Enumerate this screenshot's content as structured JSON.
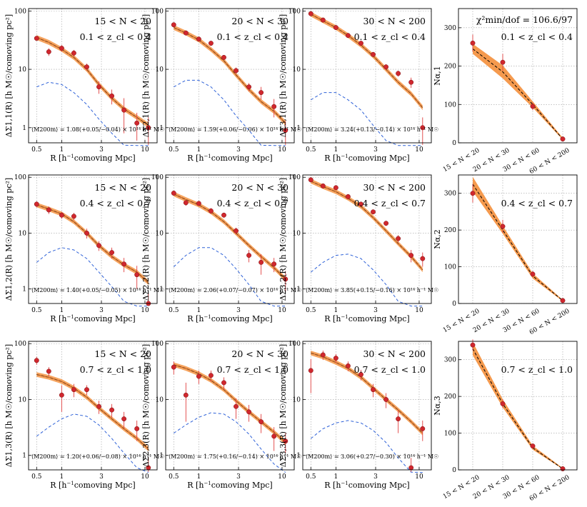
{
  "figure": {
    "xlabel_main": "R [h",
    "xlabel_sup": "−1",
    "xlabel_rest": "comoving Mpc]",
    "nsub_label": "N",
    "nsub_sub": "α"
  },
  "colors": {
    "band": "#f59a4e",
    "model": "#000000",
    "twohalo": "#2f62d8",
    "point": "#d0272e",
    "err": "#e04040"
  },
  "chart_data": {
    "type": "line",
    "xlim": [
      0.4,
      14
    ],
    "ylim": [
      0.55,
      110
    ],
    "xscale": "log",
    "yscale": "log",
    "xticks": [
      {
        "v": 0.5,
        "t": "0.5"
      },
      {
        "v": 1,
        "t": "1"
      },
      {
        "v": 3,
        "t": "3"
      },
      {
        "v": 10,
        "t": "10"
      }
    ],
    "yticks": [
      {
        "v": 1,
        "t": "1"
      },
      {
        "v": 10,
        "t": "10"
      },
      {
        "v": 100,
        "t": "100"
      }
    ],
    "r": [
      0.5,
      0.7,
      1.0,
      1.4,
      2.0,
      2.8,
      4.0,
      5.6,
      8.0,
      11.0
    ],
    "richness_bins": [
      "15 < N < 20",
      "20 < N < 30",
      "30 < N < 200"
    ],
    "redshift_bins": [
      "0.1 < z_cl < 0.4",
      "0.4 < z_cl < 0.7",
      "0.7 < z_cl < 1.0"
    ],
    "panels": [
      {
        "ylabel": "ΔΣ1,1(R) [h M☉/comoving pc²]",
        "richness": "15 < N < 20",
        "redshift": "0.1 < z_cl < 0.4",
        "mass": "⟨M200m⟩ = 1.08(+0.05/−0.04) × 10¹⁴ h⁻¹ M☉",
        "y": [
          34,
          20,
          23,
          19,
          11,
          5.0,
          3.5,
          2.0,
          1.2,
          1.0
        ],
        "err": [
          3,
          3,
          3,
          2.5,
          1.5,
          1.2,
          1.0,
          1.2,
          0.6,
          0.5
        ],
        "model": [
          35,
          29,
          22,
          16,
          10,
          5.5,
          3.2,
          2.1,
          1.5,
          1.1
        ],
        "twohalo": [
          5,
          6,
          5.5,
          4,
          2.5,
          1.4,
          0.8,
          0.5,
          0.35,
          0.25
        ]
      },
      {
        "ylabel": "ΔΣ2,1(R) [h M☉/comoving pc²]",
        "richness": "20 < N < 30",
        "redshift": "0.1 < z_cl < 0.4",
        "mass": "⟨M200m⟩ = 1.59(+0.06/−0.06) × 10¹⁴ h⁻¹ M☉",
        "y": [
          58,
          42,
          33,
          28,
          16,
          9.5,
          5,
          4,
          2.3,
          0.9
        ],
        "err": [
          4,
          3,
          3,
          2.5,
          1.5,
          1.2,
          0.8,
          1.0,
          0.8,
          0.4
        ],
        "model": [
          52,
          42,
          32,
          22,
          14,
          8,
          4.5,
          2.8,
          1.9,
          1.2
        ],
        "twohalo": [
          5,
          6.5,
          6.5,
          5,
          3,
          1.6,
          0.9,
          0.5,
          0.3,
          0.2
        ]
      },
      {
        "ylabel": "ΔΣ3,1(R) [h M☉/comoving pc²]",
        "richness": "30 < N < 200",
        "redshift": "0.1 < z_cl < 0.4",
        "mass": "⟨M200m⟩ = 3.24(+0.13/−0.14) × 10¹⁴ h⁻¹ M☉",
        "y": [
          90,
          70,
          52,
          38,
          28,
          18,
          11,
          8.5,
          6,
          1.0
        ],
        "err": [
          5,
          4,
          3,
          2.5,
          2,
          1.5,
          1.2,
          1.0,
          1.2,
          0.5
        ],
        "model": [
          88,
          68,
          52,
          38,
          26,
          17,
          10,
          6,
          3.8,
          2.2
        ],
        "twohalo": [
          3,
          4,
          4,
          3,
          2,
          1.1,
          0.6,
          0.35,
          0.2,
          0.12
        ]
      },
      {
        "ylabel": "ΔΣ1,2(R) [h M☉/comoving pc²]",
        "richness": "15 < N < 20",
        "redshift": "0.4 < z_cl < 0.7",
        "mass": "⟨M200m⟩ = 1.40(+0.05/−0.05) × 10¹⁴ h⁻¹ M☉",
        "y": [
          33,
          26,
          21,
          20,
          10,
          6,
          4.5,
          2.8,
          1.8,
          0.55
        ],
        "err": [
          4,
          4,
          3,
          3,
          2,
          1.2,
          1.0,
          0.8,
          0.8,
          0.3
        ],
        "model": [
          32,
          27,
          22,
          16,
          10,
          6,
          3.8,
          2.7,
          2,
          1.3
        ],
        "twohalo": [
          3,
          4.5,
          5.5,
          5,
          3.5,
          2,
          1.1,
          0.6,
          0.35,
          0.2
        ]
      },
      {
        "ylabel": "ΔΣ2,2(R) [h M☉/comoving pc²]",
        "richness": "20 < N < 30",
        "redshift": "0.4 < z_cl < 0.7",
        "mass": "⟨M200m⟩ = 2.06(+0.07/−0.07) × 10¹⁴ h⁻¹ M☉",
        "y": [
          52,
          35,
          34,
          25,
          21,
          11,
          4,
          3,
          2.8,
          1.5
        ],
        "err": [
          5,
          4,
          3,
          3,
          2,
          1.5,
          1.0,
          1.2,
          0.8,
          0.6
        ],
        "model": [
          50,
          40,
          32,
          24,
          16,
          10,
          6,
          3.8,
          2.4,
          1.5
        ],
        "twohalo": [
          2.5,
          4,
          5.5,
          5.5,
          4,
          2.3,
          1.2,
          0.6,
          0.35,
          0.2
        ]
      },
      {
        "ylabel": "ΔΣ3,2(R) [h M☉/comoving pc²]",
        "richness": "30 < N < 200",
        "redshift": "0.4 < z_cl < 0.7",
        "mass": "⟨M200m⟩ = 3.85(+0.15/−0.16) × 10¹⁴ h⁻¹ M☉",
        "y": [
          90,
          70,
          65,
          45,
          33,
          24,
          15,
          8,
          4,
          3.5
        ],
        "err": [
          6,
          5,
          5,
          4,
          3,
          2,
          1.5,
          1.2,
          1.0,
          1.0
        ],
        "model": [
          85,
          68,
          55,
          42,
          30,
          19,
          11,
          6.5,
          3.8,
          2.2
        ],
        "twohalo": [
          2,
          3,
          4,
          4.2,
          3.5,
          2.2,
          1.2,
          0.6,
          0.35,
          0.2
        ]
      },
      {
        "ylabel": "ΔΣ1,3(R) [h M☉/comoving pc²]",
        "richness": "15 < N < 20",
        "redshift": "0.7 < z_cl < 1.0",
        "mass": "⟨M200m⟩ = 1.20(+0.06/−0.08) × 10¹⁴ h⁻¹ M☉",
        "y": [
          50,
          32,
          12,
          15,
          15,
          7.5,
          6.5,
          4.5,
          3,
          0.6
        ],
        "err": [
          8,
          6,
          6,
          4,
          3,
          2,
          1.8,
          1.5,
          1.2,
          0.3
        ],
        "model": [
          28,
          25,
          21,
          16,
          11,
          7,
          4.5,
          3,
          2,
          1.3
        ],
        "twohalo": [
          2.2,
          3.2,
          4.5,
          5.5,
          5,
          3.5,
          2,
          1.1,
          0.6,
          0.35
        ]
      },
      {
        "ylabel": "ΔΣ2,3(R) [h M☉/comoving pc²]",
        "richness": "20 < N < 30",
        "redshift": "0.7 < z_cl < 1.0",
        "mass": "⟨M200m⟩ = 1.75(+0.16/−0.14) × 10¹⁴ h⁻¹ M☉",
        "y": [
          38,
          12,
          26,
          27,
          20,
          7.5,
          6,
          4,
          2.2,
          1.8
        ],
        "err": [
          10,
          8,
          7,
          6,
          5,
          3,
          2,
          1.5,
          1.0,
          0.7
        ],
        "model": [
          42,
          36,
          29,
          22,
          15,
          9.5,
          6,
          4,
          2.6,
          1.7
        ],
        "twohalo": [
          2.5,
          3.5,
          4.8,
          5.8,
          5.5,
          4,
          2.4,
          1.3,
          0.7,
          0.4
        ]
      },
      {
        "ylabel": "ΔΣ3,3(R) [h M☉/comoving pc²]",
        "richness": "30 < N < 200",
        "redshift": "0.7 < z_cl < 1.0",
        "mass": "⟨M200m⟩ = 3.06(+0.27/−0.30) × 10¹⁴ h⁻¹ M☉",
        "y": [
          33,
          63,
          55,
          40,
          28,
          15,
          10,
          4.5,
          0.6,
          3
        ],
        "err": [
          20,
          12,
          10,
          8,
          6,
          4,
          3,
          2,
          0.3,
          1.2
        ],
        "model": [
          68,
          58,
          46,
          36,
          25,
          16,
          10,
          6.5,
          4,
          2.5
        ],
        "twohalo": [
          2,
          3,
          3.8,
          4.2,
          3.8,
          2.8,
          1.7,
          0.9,
          0.5,
          0.3
        ]
      }
    ],
    "normalization": {
      "categories": [
        "15 < N < 20",
        "20 < N < 30",
        "30 < N < 60",
        "60 < N < 200"
      ],
      "ylim": [
        0,
        350
      ],
      "yticks": [
        0,
        100,
        200,
        300
      ],
      "panels": [
        {
          "ylabel": "Nα,1",
          "chi2": "χ²min/dof = 106.6/97",
          "redshift": "0.1 < z_cl < 0.4",
          "points": [
            260,
            210,
            95,
            10
          ],
          "err": [
            22,
            22,
            10,
            2
          ],
          "model": [
            245,
            185,
            100,
            10
          ],
          "band_lo": [
            232,
            168,
            92,
            8
          ],
          "band_hi": [
            258,
            202,
            108,
            13
          ]
        },
        {
          "ylabel": "Nα,2",
          "chi2": "",
          "redshift": "0.4 < z_cl < 0.7",
          "points": [
            300,
            210,
            80,
            8
          ],
          "err": [
            25,
            18,
            8,
            2
          ],
          "model": [
            325,
            200,
            75,
            8
          ],
          "band_lo": [
            305,
            190,
            68,
            6
          ],
          "band_hi": [
            345,
            212,
            82,
            10
          ]
        },
        {
          "ylabel": "Nα,3",
          "chi2": "",
          "redshift": "0.7 < z_cl < 1.0",
          "points": [
            340,
            180,
            65,
            3
          ],
          "err": [
            15,
            12,
            6,
            1
          ],
          "model": [
            330,
            180,
            60,
            3
          ],
          "band_lo": [
            312,
            170,
            55,
            2
          ],
          "band_hi": [
            348,
            192,
            66,
            5
          ]
        }
      ]
    }
  }
}
